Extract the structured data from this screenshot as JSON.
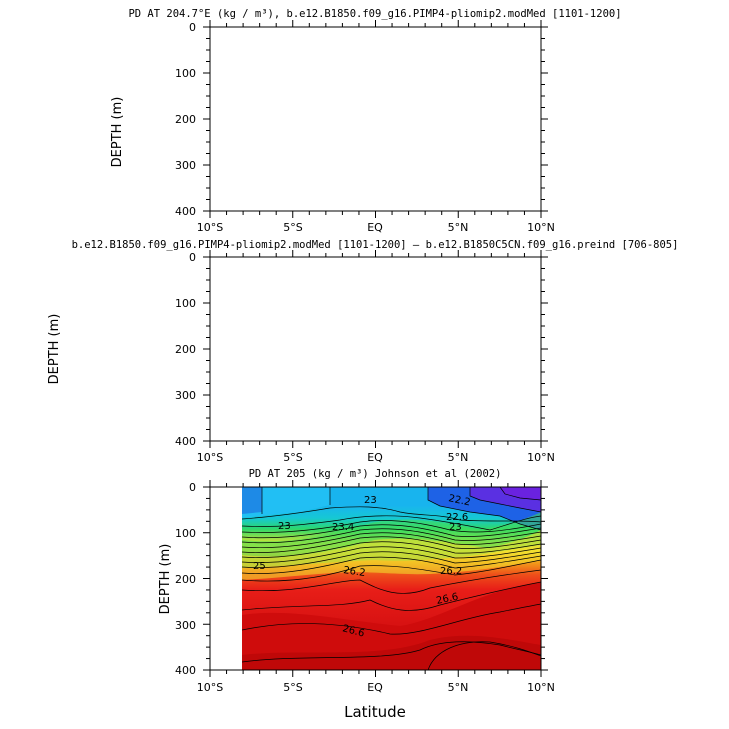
{
  "chart_data": [
    {
      "type": "heatmap",
      "title": "PD AT 204.7°E (kg / m³), b.e12.B1850.f09_g16.PIMP4-pliomip2.modMed [1101-1200]",
      "ylabel": "DEPTH (m)",
      "xlabel": "",
      "xlim": [
        -10,
        10
      ],
      "ylim": [
        400,
        0
      ],
      "xticks": [
        "10°S",
        "5°S",
        "EQ",
        "5°N",
        "10°N"
      ],
      "yticks": [
        "0",
        "100",
        "200",
        "300",
        "400"
      ],
      "filled": false
    },
    {
      "type": "heatmap",
      "title": "b.e12.B1850.f09_g16.PIMP4-pliomip2.modMed [1101-1200] – b.e12.B1850C5CN.f09_g16.preind [706-805]",
      "ylabel": "DEPTH (m)",
      "xlabel": "",
      "xlim": [
        -10,
        10
      ],
      "ylim": [
        400,
        0
      ],
      "xticks": [
        "10°S",
        "5°S",
        "EQ",
        "5°N",
        "10°N"
      ],
      "yticks": [
        "0",
        "100",
        "200",
        "300",
        "400"
      ],
      "filled": false
    },
    {
      "type": "heatmap",
      "title": "PD AT 205 (kg / m³) Johnson et al (2002)",
      "ylabel": "DEPTH (m)",
      "xlabel": "Latitude",
      "xlim": [
        -10,
        10
      ],
      "ylim": [
        400,
        0
      ],
      "data_xrange": [
        -8,
        10
      ],
      "xticks": [
        "10°S",
        "5°S",
        "EQ",
        "5°N",
        "10°N"
      ],
      "yticks": [
        "0",
        "100",
        "200",
        "300",
        "400"
      ],
      "filled": true,
      "contour_labels": [
        "22.2",
        "22.6",
        "23",
        "23",
        "23",
        "23.4",
        "25",
        "26.2",
        "26.2",
        "26.6",
        "26.6"
      ],
      "colors": {
        "top_cyan": "#18b4ee",
        "top_blue": "#1e62e6",
        "top_purple": "#6a22e0",
        "mid_green": "#2ed86a",
        "mid_yellow": "#f2e030",
        "orange": "#f3a01a",
        "red": "#e81e18",
        "deep_red": "#cf0c0c",
        "deepest_red": "#c00808"
      }
    }
  ]
}
